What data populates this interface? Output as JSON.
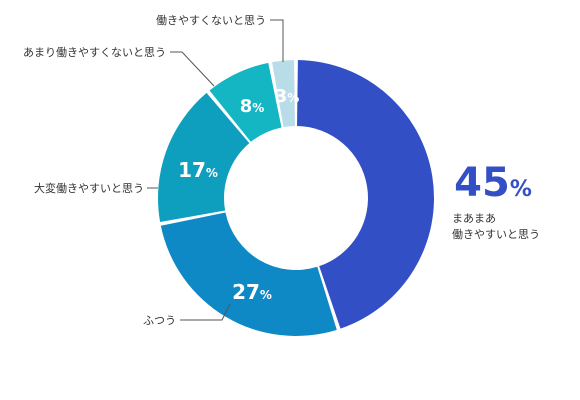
{
  "chart_data": {
    "type": "pie",
    "title": "",
    "slices": [
      {
        "label_lines": [
          "まあまあ",
          "働きやすいと思う"
        ],
        "value": 45,
        "value_text": "45",
        "unit": "%",
        "color": "#334fc6"
      },
      {
        "label_lines": [
          "ふつう"
        ],
        "value": 27,
        "value_text": "27",
        "unit": "%",
        "color": "#0f88c6"
      },
      {
        "label_lines": [
          "大変働きやすいと思う"
        ],
        "value": 17,
        "value_text": "17",
        "unit": "%",
        "color": "#0f9fbe"
      },
      {
        "label_lines": [
          "あまり働きやすくないと思う"
        ],
        "value": 8,
        "value_text": "8",
        "unit": "%",
        "color": "#14b6c4"
      },
      {
        "label_lines": [
          "働きやすくないと思う"
        ],
        "value": 3,
        "value_text": "3",
        "unit": "%",
        "color": "#b9dce9"
      }
    ]
  }
}
